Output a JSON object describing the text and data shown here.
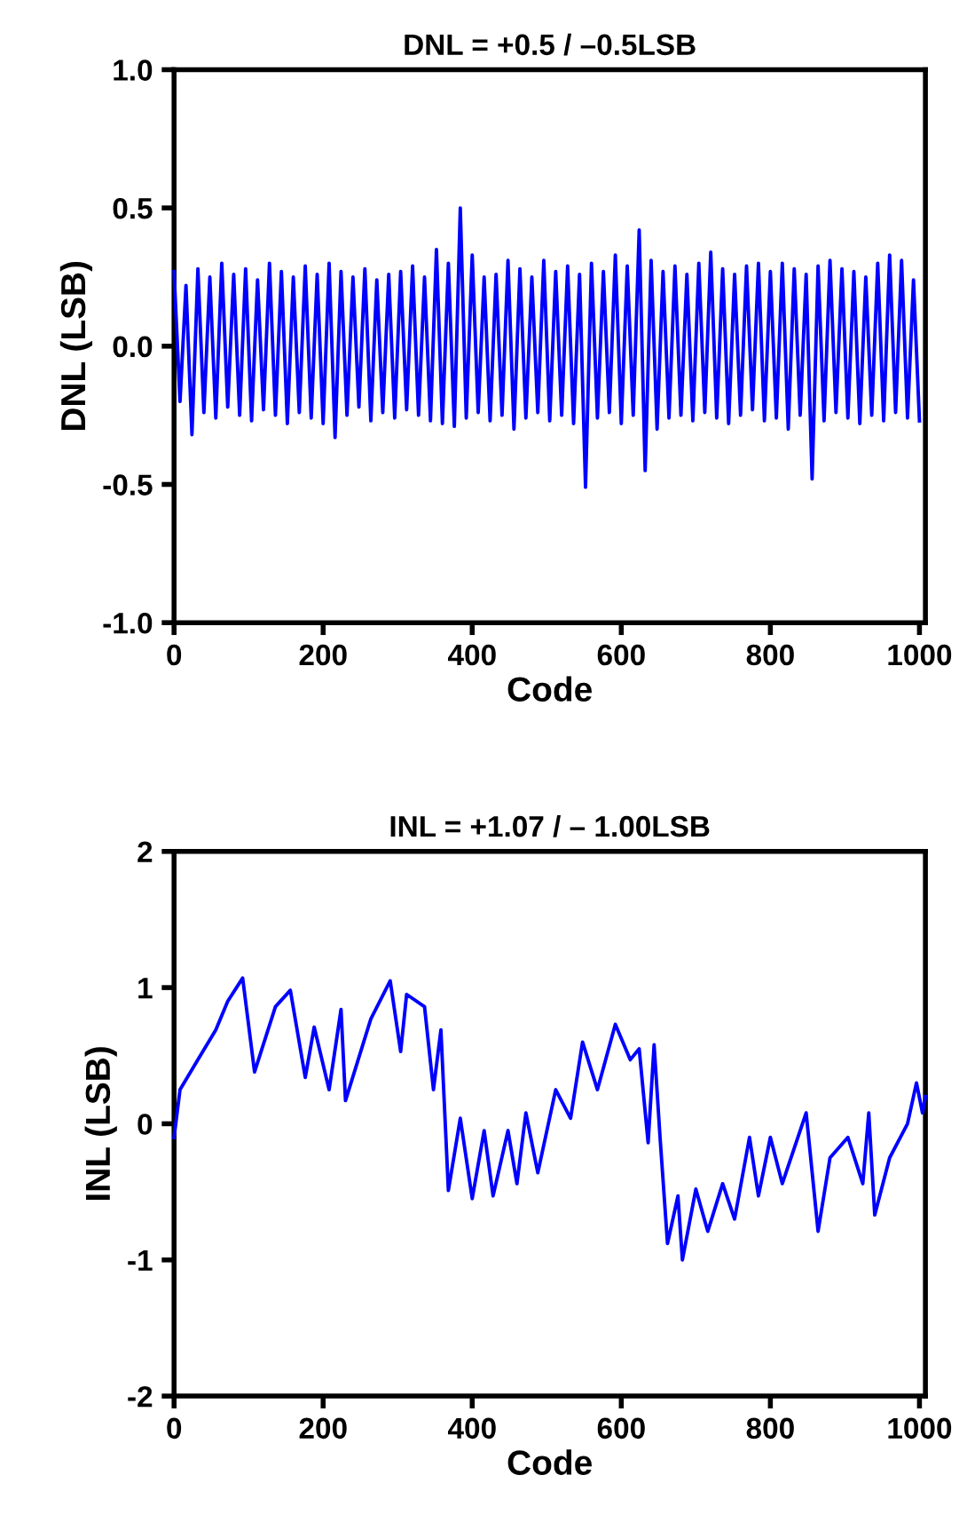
{
  "chart_data": [
    {
      "type": "line",
      "title": "DNL = +0.5 / –0.5LSB",
      "xlabel": "Code",
      "ylabel": "DNL (LSB)",
      "x": [
        0,
        8,
        16,
        24,
        32,
        40,
        48,
        56,
        64,
        72,
        80,
        88,
        96,
        104,
        112,
        120,
        128,
        136,
        144,
        152,
        160,
        168,
        176,
        184,
        192,
        200,
        208,
        216,
        224,
        232,
        240,
        248,
        256,
        264,
        272,
        280,
        288,
        296,
        304,
        312,
        320,
        328,
        336,
        344,
        352,
        360,
        368,
        376,
        384,
        392,
        400,
        408,
        416,
        424,
        432,
        440,
        448,
        456,
        464,
        472,
        480,
        488,
        496,
        504,
        512,
        520,
        528,
        536,
        544,
        552,
        560,
        568,
        576,
        584,
        592,
        600,
        608,
        616,
        624,
        632,
        640,
        648,
        656,
        664,
        672,
        680,
        688,
        696,
        704,
        712,
        720,
        728,
        736,
        744,
        752,
        760,
        768,
        776,
        784,
        792,
        800,
        808,
        816,
        824,
        832,
        840,
        848,
        856,
        864,
        872,
        880,
        888,
        896,
        904,
        912,
        920,
        928,
        936,
        944,
        952,
        960,
        968,
        976,
        984,
        992,
        1000
      ],
      "series": [
        {
          "color": "#0000ff",
          "values": [
            0.27,
            -0.2,
            0.22,
            -0.32,
            0.28,
            -0.24,
            0.25,
            -0.26,
            0.3,
            -0.22,
            0.26,
            -0.25,
            0.28,
            -0.27,
            0.24,
            -0.23,
            0.3,
            -0.25,
            0.27,
            -0.28,
            0.25,
            -0.24,
            0.29,
            -0.26,
            0.26,
            -0.28,
            0.3,
            -0.33,
            0.27,
            -0.25,
            0.25,
            -0.22,
            0.28,
            -0.27,
            0.24,
            -0.24,
            0.26,
            -0.26,
            0.27,
            -0.23,
            0.29,
            -0.25,
            0.25,
            -0.27,
            0.35,
            -0.28,
            0.3,
            -0.29,
            0.5,
            -0.26,
            0.33,
            -0.24,
            0.25,
            -0.27,
            0.26,
            -0.25,
            0.31,
            -0.3,
            0.28,
            -0.26,
            0.25,
            -0.24,
            0.31,
            -0.27,
            0.27,
            -0.25,
            0.29,
            -0.28,
            0.26,
            -0.51,
            0.3,
            -0.26,
            0.27,
            -0.24,
            0.33,
            -0.28,
            0.29,
            -0.25,
            0.42,
            -0.45,
            0.31,
            -0.3,
            0.27,
            -0.26,
            0.29,
            -0.25,
            0.26,
            -0.27,
            0.3,
            -0.24,
            0.34,
            -0.26,
            0.28,
            -0.28,
            0.26,
            -0.25,
            0.29,
            -0.23,
            0.3,
            -0.27,
            0.27,
            -0.26,
            0.3,
            -0.3,
            0.28,
            -0.25,
            0.26,
            -0.48,
            0.29,
            -0.27,
            0.31,
            -0.24,
            0.28,
            -0.26,
            0.27,
            -0.28,
            0.25,
            -0.25,
            0.3,
            -0.27,
            0.33,
            -0.24,
            0.31,
            -0.26,
            0.24,
            -0.27
          ]
        }
      ],
      "xlim": [
        0,
        1008
      ],
      "xticks": [
        0,
        200,
        400,
        600,
        800,
        1000
      ],
      "ylim": [
        -1.0,
        1.0
      ],
      "yticks": [
        {
          "value": -1.0,
          "label": "-1.0"
        },
        {
          "value": -0.5,
          "label": "-0.5"
        },
        {
          "value": 0.0,
          "label": "0.0"
        },
        {
          "value": 0.5,
          "label": "0.5"
        },
        {
          "value": 1.0,
          "label": "1.0"
        }
      ],
      "grid": false,
      "marker": "none",
      "line_style": "solid"
    },
    {
      "type": "line",
      "title": "INL = +1.07 / – 1.00LSB",
      "xlabel": "Code",
      "ylabel": "INL (LSB)",
      "x": [
        0,
        8,
        32,
        56,
        72,
        92,
        108,
        136,
        156,
        176,
        188,
        208,
        224,
        230,
        264,
        290,
        304,
        312,
        336,
        348,
        358,
        368,
        384,
        400,
        416,
        428,
        448,
        460,
        472,
        488,
        512,
        532,
        548,
        568,
        592,
        612,
        624,
        636,
        644,
        652,
        662,
        676,
        682,
        700,
        716,
        736,
        752,
        772,
        784,
        800,
        816,
        848,
        864,
        880,
        904,
        924,
        932,
        940,
        960,
        984,
        996,
        1004,
        1008
      ],
      "series": [
        {
          "color": "#0000ff",
          "values": [
            -0.1,
            0.25,
            0.47,
            0.69,
            0.9,
            1.07,
            0.38,
            0.86,
            0.98,
            0.34,
            0.71,
            0.25,
            0.84,
            0.17,
            0.77,
            1.05,
            0.53,
            0.95,
            0.86,
            0.25,
            0.69,
            -0.49,
            0.04,
            -0.55,
            -0.05,
            -0.53,
            -0.05,
            -0.44,
            0.08,
            -0.36,
            0.25,
            0.04,
            0.6,
            0.25,
            0.73,
            0.47,
            0.55,
            -0.14,
            0.58,
            -0.1,
            -0.88,
            -0.53,
            -1.0,
            -0.48,
            -0.79,
            -0.44,
            -0.7,
            -0.1,
            -0.53,
            -0.1,
            -0.44,
            0.08,
            -0.79,
            -0.25,
            -0.1,
            -0.44,
            0.08,
            -0.67,
            -0.25,
            0.0,
            0.3,
            0.08,
            0.2
          ]
        }
      ],
      "xlim": [
        0,
        1008
      ],
      "xticks": [
        0,
        200,
        400,
        600,
        800,
        1000
      ],
      "ylim": [
        -2,
        2
      ],
      "yticks": [
        -2,
        -1,
        0,
        1,
        2
      ],
      "grid": false,
      "marker": "none",
      "line_style": "solid"
    }
  ]
}
